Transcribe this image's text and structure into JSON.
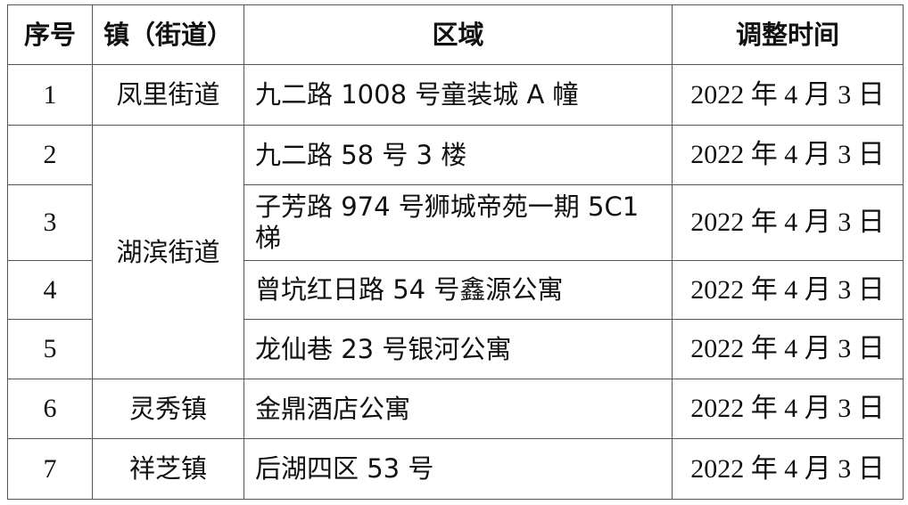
{
  "headers": [
    "序号",
    "镇（街道）",
    "区域",
    "调整时间"
  ],
  "rows": [
    {
      "no": "1",
      "town": "凤里街道",
      "area": "九二路 1008 号童装城 A 幢",
      "date": "2022 年 4 月 3 日"
    },
    {
      "no": "2",
      "town": "湖滨街道",
      "area": "九二路 58 号 3 楼",
      "date": "2022 年 4 月 3 日"
    },
    {
      "no": "3",
      "town": "",
      "area": "子芳路 974 号狮城帝苑一期 5C1 梯",
      "date": "2022 年 4 月 3 日"
    },
    {
      "no": "4",
      "town": "",
      "area": "曾坑红日路 54 号鑫源公寓",
      "date": "2022 年 4 月 3 日"
    },
    {
      "no": "5",
      "town": "",
      "area": "龙仙巷 23 号银河公寓",
      "date": "2022 年 4 月 3 日"
    },
    {
      "no": "6",
      "town": "灵秀镇",
      "area": "金鼎酒店公寓",
      "date": "2022 年 4 月 3 日"
    },
    {
      "no": "7",
      "town": "祥芝镇",
      "area": "后湖四区 53 号",
      "date": "2022 年 4 月 3 日"
    }
  ]
}
